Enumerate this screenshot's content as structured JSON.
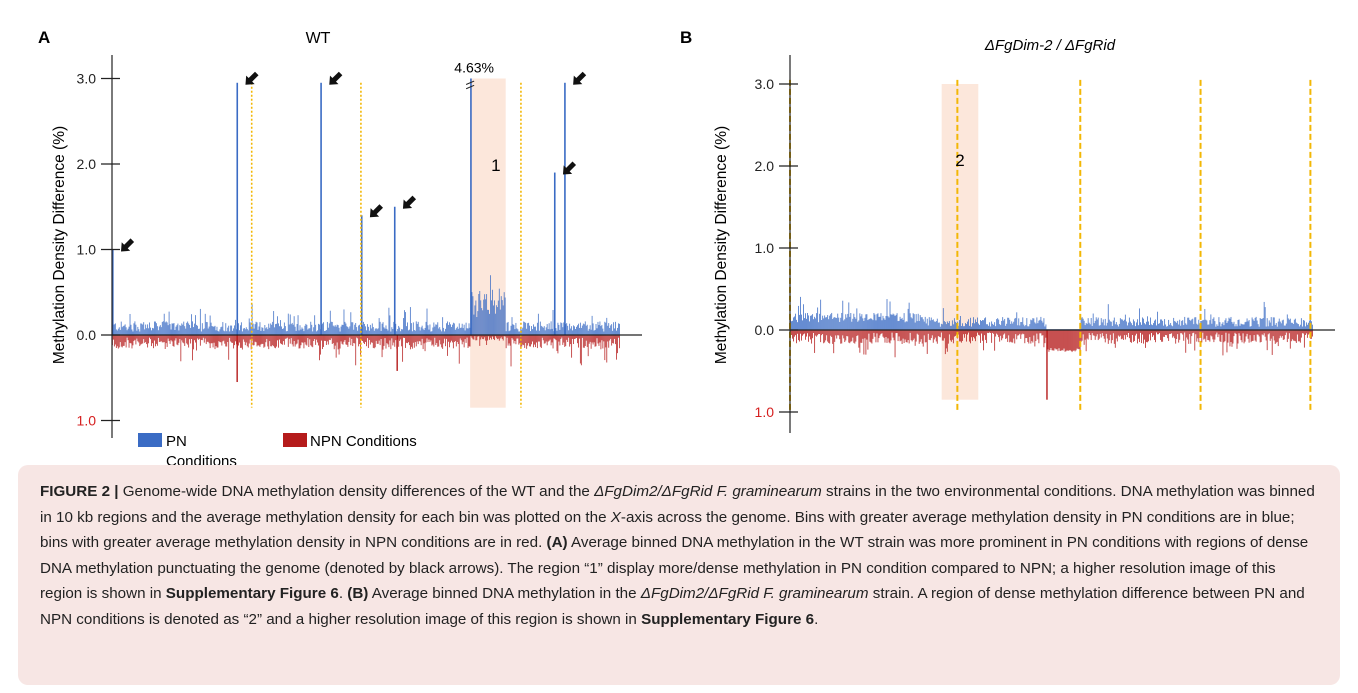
{
  "colors": {
    "pn": "#3a6bc4",
    "npn": "#b51b1b",
    "boundary": "#f2b705",
    "highlight": "#fbe3d5",
    "neg_tick": "#d62020",
    "caption_bg": "#f7e6e4"
  },
  "chart_data": [
    {
      "panel": "A",
      "type": "bar",
      "title": "WT",
      "ylabel": "Methylation Density Difference (%)",
      "ylim": [
        -1.0,
        3.0
      ],
      "y_ticks": [
        {
          "label": "3.0",
          "value": 3.0
        },
        {
          "label": "2.0",
          "value": 2.0
        },
        {
          "label": "1.0",
          "value": 1.0
        },
        {
          "label": "0.0",
          "value": 0.0
        },
        {
          "label": "1.0",
          "value": -1.0,
          "negative": true
        }
      ],
      "legend": [
        {
          "name": "PN\nConditions",
          "color": "#3a6bc4"
        },
        {
          "name": "NPN Conditions",
          "color": "#b51b1b"
        }
      ],
      "chromosome_boundaries": [
        0.275,
        0.49,
        0.805
      ],
      "highlight_region": {
        "label": "1",
        "x_start": 0.705,
        "x_end": 0.775
      },
      "annotations": [
        {
          "text": "4.63%",
          "x": 0.705,
          "y": 3.0
        }
      ],
      "peaks": [
        {
          "x": 0.0,
          "value": 1.0,
          "arrow": true
        },
        {
          "x": 0.245,
          "value": 2.95,
          "arrow": true
        },
        {
          "x": 0.41,
          "value": 2.95,
          "arrow": true
        },
        {
          "x": 0.49,
          "value": 1.4,
          "arrow": true
        },
        {
          "x": 0.555,
          "value": 1.5,
          "arrow": true
        },
        {
          "x": 0.705,
          "value": 4.63,
          "arrow": false
        },
        {
          "x": 0.87,
          "value": 1.9,
          "arrow": true
        },
        {
          "x": 0.89,
          "value": 2.95,
          "arrow": true
        }
      ],
      "npn_extremes": [
        {
          "x": 0.245,
          "value": -0.55
        },
        {
          "x": 0.56,
          "value": -0.42
        }
      ]
    },
    {
      "panel": "B",
      "type": "bar",
      "title": "ΔFgDim-2 / ΔFgRid",
      "ylabel": "Methylation Density Difference (%)",
      "ylim": [
        -1.0,
        3.0
      ],
      "y_ticks": [
        {
          "label": "3.0",
          "value": 3.0
        },
        {
          "label": "2.0",
          "value": 2.0
        },
        {
          "label": "1.0",
          "value": 1.0
        },
        {
          "label": "0.0",
          "value": 0.0
        },
        {
          "label": "1.0",
          "value": -1.0,
          "negative": true
        }
      ],
      "chromosome_boundaries": [
        0.0,
        0.32,
        0.555,
        0.785,
        0.995
      ],
      "highlight_region": {
        "label": "2",
        "x_start": 0.29,
        "x_end": 0.36
      },
      "npn_block": {
        "x_start": 0.49,
        "x_end": 0.555,
        "value": -0.22
      },
      "npn_extremes": [
        {
          "x": 0.49,
          "value": -0.85
        }
      ]
    }
  ],
  "caption": {
    "label": "FIGURE 2 |",
    "p1": " Genome-wide DNA methylation density differences of the WT and the ",
    "strain_italic": "ΔFgDim2/ΔFgRid F. graminearum",
    "p2": " strains in the two environmental conditions. DNA methylation was binned in 10 kb regions and the average methylation density for each bin was plotted on the ",
    "x_axis_italic": "X",
    "p3": "-axis across the genome. Bins with greater average methylation density in PN conditions are in blue; bins with greater average methylation density in NPN conditions are in red. ",
    "a_label": "(A)",
    "p4": " Average binned DNA methylation in the WT strain was more prominent in PN conditions with regions of dense DNA methylation punctuating the genome (denoted by black arrows). The region “1” display more/dense methylation in PN condition compared to NPN; a higher resolution image of this region is shown in ",
    "supp": "Supplementary Figure 6",
    "p5": ". ",
    "b_label": "(B)",
    "p6": " Average binned DNA methylation in the ",
    "p7": " strain. A region of dense methylation difference between PN and NPN conditions is denoted as “2” and a higher resolution image of this region is shown in ",
    "p8": "."
  }
}
